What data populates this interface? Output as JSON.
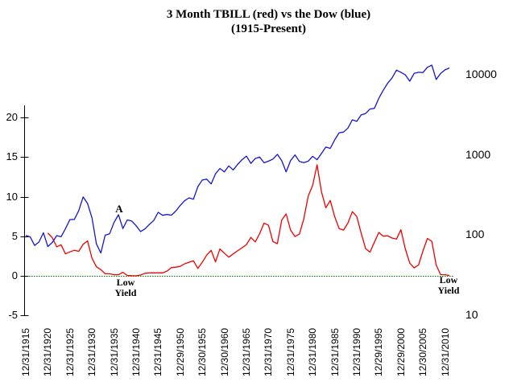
{
  "title": {
    "line1": "3 Month TBILL (red) vs the Dow (blue)",
    "line2": "(1915-Present)"
  },
  "annotations": {
    "a": "A",
    "low_yield_left": [
      "Low",
      "Yield"
    ],
    "low_yield_right": [
      "Low",
      "Yield"
    ]
  },
  "colors": {
    "tbill": "#f00000",
    "dow": "#1515d0",
    "zero_line": "#007a00",
    "axis": "#000000"
  },
  "chart_data": {
    "type": "line",
    "title": "3 Month TBILL (red) vs the Dow (blue) (1915-Present)",
    "x_axis": {
      "tick_labels": [
        "12/31/1915",
        "12/31/1920",
        "12/31/1925",
        "12/31/1930",
        "12/31/1935",
        "12/31/1940",
        "12/31/1945",
        "12/29/1950",
        "12/30/1955",
        "12/30/1960",
        "12/31/1965",
        "12/31/1970",
        "12/31/1975",
        "12/31/1980",
        "12/31/1985",
        "12/31/1990",
        "12/29/1995",
        "12/29/2000",
        "12/30/2005",
        "12/31/2010"
      ],
      "tick_years": [
        1915,
        1920,
        1925,
        1930,
        1935,
        1940,
        1945,
        1950,
        1955,
        1960,
        1965,
        1970,
        1975,
        1980,
        1985,
        1990,
        1995,
        2000,
        2005,
        2010
      ]
    },
    "left_axis": {
      "ticks": [
        20,
        15,
        10,
        5,
        0,
        -5
      ],
      "range": [
        -5,
        22
      ],
      "scale": "linear"
    },
    "right_axis": {
      "ticks": [
        10000,
        1000,
        100,
        10
      ],
      "range": [
        10,
        10000
      ],
      "scale": "log"
    },
    "zero_line": {
      "value": 0,
      "axis": "left"
    },
    "grid": false,
    "legend": "none (colors named in title)",
    "series": [
      {
        "name": "3 Month TBILL",
        "axis": "left",
        "color_key": "tbill",
        "start_year": 1920,
        "values": [
          5.42,
          4.83,
          3.67,
          3.93,
          2.77,
          3.03,
          3.23,
          3.1,
          3.97,
          4.42,
          2.23,
          1.15,
          0.78,
          0.26,
          0.26,
          0.14,
          0.14,
          0.45,
          0.05,
          0.02,
          0.01,
          0.1,
          0.33,
          0.37,
          0.38,
          0.38,
          0.38,
          0.6,
          1.05,
          1.1,
          1.2,
          1.52,
          1.72,
          1.9,
          0.94,
          1.73,
          2.62,
          3.22,
          1.77,
          3.39,
          2.87,
          2.36,
          2.77,
          3.16,
          3.55,
          3.95,
          4.86,
          4.29,
          5.34,
          6.67,
          6.39,
          4.33,
          4.06,
          7.03,
          7.83,
          5.78,
          4.97,
          5.27,
          7.19,
          10.07,
          11.43,
          14.03,
          10.61,
          8.61,
          9.52,
          7.48,
          5.98,
          5.78,
          6.67,
          8.11,
          7.5,
          5.38,
          3.43,
          3.0,
          4.25,
          5.49,
          5.01,
          5.06,
          4.78,
          4.64,
          5.82,
          3.4,
          1.61,
          1.01,
          1.37,
          3.15,
          4.73,
          4.36,
          1.37,
          0.15,
          0.14,
          0.05
        ]
      },
      {
        "name": "Dow",
        "axis": "right",
        "color_key": "dow",
        "start_year": 1915,
        "values": [
          99.2,
          95.0,
          74.4,
          82.2,
          107.2,
          72.0,
          81.1,
          98.7,
          95.5,
          120.5,
          156.7,
          157.2,
          202.4,
          300.0,
          248.5,
          164.6,
          77.9,
          59.9,
          99.9,
          104.0,
          144.1,
          179.9,
          120.9,
          154.8,
          150.2,
          131.1,
          111.0,
          119.4,
          135.9,
          152.3,
          192.9,
          177.2,
          181.2,
          177.3,
          200.1,
          235.4,
          269.2,
          292.0,
          281.0,
          404.4,
          488.4,
          499.5,
          435.7,
          583.7,
          679.4,
          615.9,
          731.1,
          652.1,
          763.0,
          874.1,
          969.3,
          785.7,
          905.1,
          943.8,
          800.4,
          838.9,
          890.2,
          1020.0,
          850.9,
          616.2,
          852.4,
          1004.7,
          831.2,
          805.0,
          838.7,
          964.0,
          875.0,
          1046.5,
          1258.6,
          1211.6,
          1546.7,
          1896.0,
          1938.8,
          2168.6,
          2753.2,
          2633.7,
          3168.8,
          3301.1,
          3754.1,
          3834.4,
          5117.1,
          6448.3,
          7908.3,
          9181.4,
          11497.1,
          10788.0,
          10021.6,
          8341.6,
          10453.9,
          10783.0,
          10717.5,
          12463.2,
          13264.8,
          8776.4,
          10428.1,
          11577.5,
          12217.6
        ]
      }
    ]
  }
}
